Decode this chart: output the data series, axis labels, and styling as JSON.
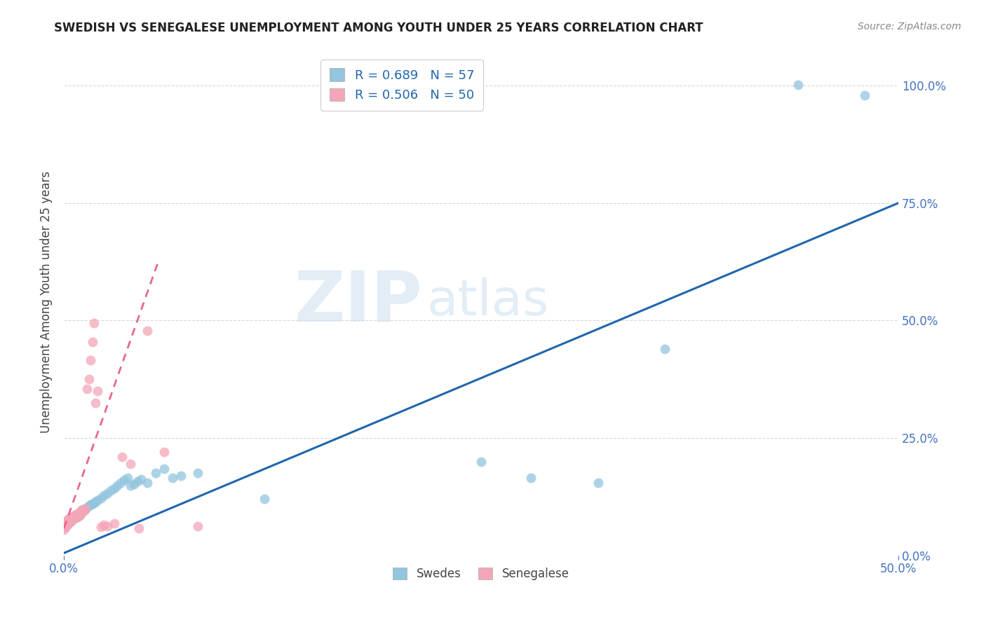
{
  "title": "SWEDISH VS SENEGALESE UNEMPLOYMENT AMONG YOUTH UNDER 25 YEARS CORRELATION CHART",
  "source": "Source: ZipAtlas.com",
  "ylabel": "Unemployment Among Youth under 25 years",
  "xlim": [
    0.0,
    0.5
  ],
  "ylim": [
    0.0,
    1.08
  ],
  "watermark_zip": "ZIP",
  "watermark_atlas": "atlas",
  "blue_R": 0.689,
  "blue_N": 57,
  "pink_R": 0.506,
  "pink_N": 50,
  "blue_color": "#92c5de",
  "pink_color": "#f4a6b8",
  "blue_line_color": "#2166ac",
  "pink_line_color": "#e8688a",
  "blue_scatter_x": [
    0.0,
    0.001,
    0.001,
    0.002,
    0.002,
    0.003,
    0.003,
    0.004,
    0.004,
    0.005,
    0.005,
    0.006,
    0.006,
    0.007,
    0.007,
    0.008,
    0.008,
    0.009,
    0.009,
    0.01,
    0.01,
    0.011,
    0.012,
    0.013,
    0.014,
    0.015,
    0.016,
    0.017,
    0.018,
    0.019,
    0.02,
    0.022,
    0.024,
    0.026,
    0.028,
    0.03,
    0.032,
    0.034,
    0.036,
    0.038,
    0.04,
    0.042,
    0.044,
    0.046,
    0.05,
    0.055,
    0.06,
    0.065,
    0.07,
    0.08,
    0.12,
    0.25,
    0.28,
    0.32,
    0.36,
    0.44,
    0.48
  ],
  "blue_scatter_y": [
    0.06,
    0.065,
    0.07,
    0.068,
    0.072,
    0.07,
    0.075,
    0.072,
    0.078,
    0.075,
    0.08,
    0.078,
    0.082,
    0.08,
    0.085,
    0.082,
    0.088,
    0.085,
    0.09,
    0.088,
    0.092,
    0.095,
    0.098,
    0.1,
    0.102,
    0.105,
    0.108,
    0.11,
    0.112,
    0.115,
    0.118,
    0.122,
    0.128,
    0.132,
    0.138,
    0.142,
    0.148,
    0.155,
    0.16,
    0.165,
    0.148,
    0.152,
    0.158,
    0.162,
    0.155,
    0.175,
    0.185,
    0.165,
    0.17,
    0.175,
    0.12,
    0.2,
    0.165,
    0.155,
    0.44,
    1.002,
    0.98
  ],
  "pink_scatter_x": [
    0.0,
    0.0,
    0.0,
    0.0,
    0.001,
    0.001,
    0.001,
    0.001,
    0.002,
    0.002,
    0.002,
    0.003,
    0.003,
    0.003,
    0.004,
    0.004,
    0.004,
    0.005,
    0.005,
    0.006,
    0.006,
    0.007,
    0.007,
    0.008,
    0.008,
    0.009,
    0.009,
    0.01,
    0.01,
    0.011,
    0.011,
    0.012,
    0.013,
    0.014,
    0.015,
    0.016,
    0.017,
    0.018,
    0.019,
    0.02,
    0.022,
    0.024,
    0.026,
    0.03,
    0.035,
    0.04,
    0.045,
    0.05,
    0.06,
    0.08
  ],
  "pink_scatter_y": [
    0.055,
    0.06,
    0.065,
    0.07,
    0.06,
    0.065,
    0.068,
    0.072,
    0.065,
    0.07,
    0.075,
    0.068,
    0.072,
    0.078,
    0.072,
    0.078,
    0.082,
    0.075,
    0.082,
    0.078,
    0.085,
    0.082,
    0.088,
    0.082,
    0.088,
    0.085,
    0.09,
    0.09,
    0.095,
    0.092,
    0.098,
    0.095,
    0.1,
    0.355,
    0.375,
    0.415,
    0.455,
    0.495,
    0.325,
    0.35,
    0.06,
    0.065,
    0.062,
    0.068,
    0.21,
    0.195,
    0.058,
    0.478,
    0.22,
    0.062
  ],
  "ytick_labels": [
    "0.0%",
    "25.0%",
    "50.0%",
    "75.0%",
    "100.0%"
  ],
  "ytick_values": [
    0.0,
    0.25,
    0.5,
    0.75,
    1.0
  ],
  "xtick_left_label": "0.0%",
  "xtick_right_label": "50.0%",
  "xtick_left_value": 0.0,
  "xtick_right_value": 0.5,
  "tick_color": "#4472c4",
  "grid_color": "#d0d0d0",
  "background_color": "#ffffff",
  "blue_line_x": [
    0.0,
    0.5
  ],
  "blue_line_y": [
    0.005,
    0.75
  ],
  "pink_line_x": [
    0.0,
    0.056
  ],
  "pink_line_y": [
    0.058,
    0.62
  ]
}
